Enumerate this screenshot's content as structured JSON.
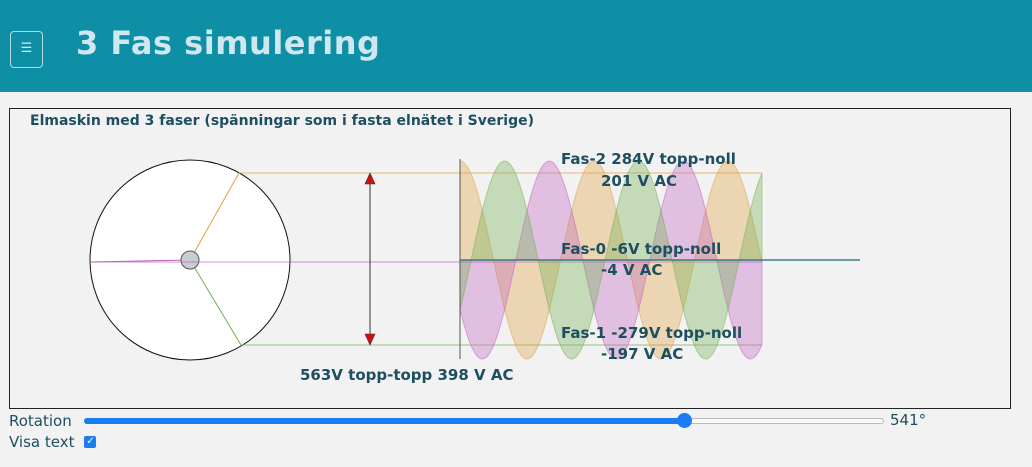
{
  "header": {
    "menu_icon": "hamburger-icon",
    "title": "3 Fas simulering"
  },
  "diagram": {
    "heading": "Elmaskin med 3 faser (spänningar som i fasta elnätet i Sverige)",
    "phase2": {
      "line1": "Fas-2 284V topp-noll",
      "line2": "201 V AC",
      "color": "#e0a040"
    },
    "phase0": {
      "line1": "Fas-0 -6V topp-noll",
      "line2": "-4 V AC",
      "color": "#c060c0"
    },
    "phase1": {
      "line1": "Fas-1 -279V topp-noll",
      "line2": "-197 V AC",
      "color": "#70b050"
    },
    "span_label": "563V topp-topp 398 V AC"
  },
  "controls": {
    "rotation_label": "Rotation",
    "rotation_value": "541°",
    "rotation_fraction": 0.75,
    "show_text_label": "Visa text",
    "show_text_checked": true
  }
}
